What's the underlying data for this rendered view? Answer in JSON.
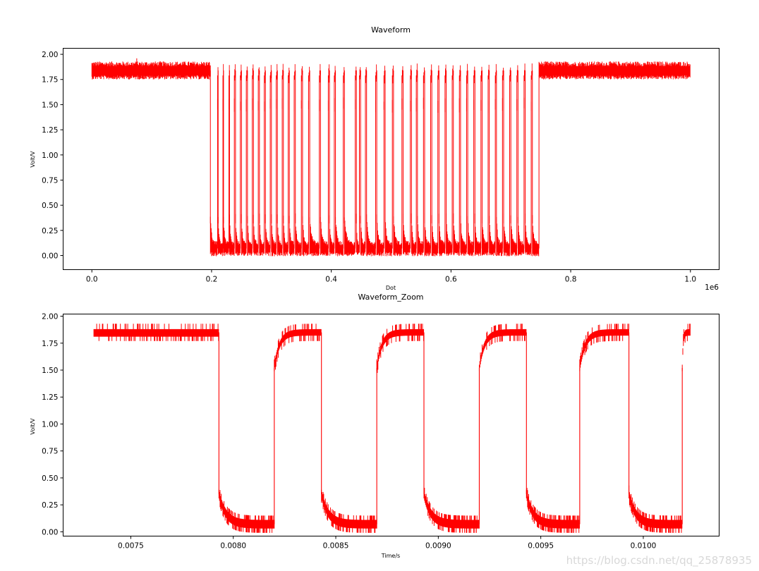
{
  "chart_data": [
    {
      "type": "line",
      "title": "Waveform",
      "xlabel": "Dot",
      "ylabel": "Volt/V",
      "x_offset_label": "1e6",
      "xlim": [
        -0.048,
        1.048
      ],
      "ylim": [
        -0.14,
        2.06
      ],
      "xticks": [
        0.0,
        0.2,
        0.4,
        0.6,
        0.8,
        1.0
      ],
      "xtick_labels": [
        "0.0",
        "0.2",
        "0.4",
        "0.6",
        "0.8",
        "1.0"
      ],
      "yticks": [
        0.0,
        0.25,
        0.5,
        0.75,
        1.0,
        1.25,
        1.5,
        1.75,
        2.0
      ],
      "ytick_labels": [
        "0.00",
        "0.25",
        "0.50",
        "0.75",
        "1.00",
        "1.25",
        "1.50",
        "1.75",
        "2.00"
      ],
      "color": "#ff0000",
      "series": [
        {
          "name": "waveform",
          "high_level": 1.84,
          "low_level": 0.07,
          "noise": 0.09,
          "idle_high_segments": [
            [
              0.0,
              0.198
            ],
            [
              0.747,
              1.0
            ]
          ],
          "pulses": [
            [
              0.198,
              0.21
            ],
            [
              0.211,
              0.219
            ],
            [
              0.22,
              0.229
            ],
            [
              0.23,
              0.238
            ],
            [
              0.24,
              0.248
            ],
            [
              0.25,
              0.258
            ],
            [
              0.26,
              0.268
            ],
            [
              0.27,
              0.278
            ],
            [
              0.28,
              0.288
            ],
            [
              0.29,
              0.298
            ],
            [
              0.3,
              0.308
            ],
            [
              0.31,
              0.318
            ],
            [
              0.32,
              0.328
            ],
            [
              0.33,
              0.338
            ],
            [
              0.34,
              0.35
            ],
            [
              0.352,
              0.362
            ],
            [
              0.364,
              0.38
            ],
            [
              0.382,
              0.395
            ],
            [
              0.397,
              0.405
            ],
            [
              0.407,
              0.42
            ],
            [
              0.422,
              0.44
            ],
            [
              0.442,
              0.447
            ],
            [
              0.449,
              0.457
            ],
            [
              0.459,
              0.474
            ],
            [
              0.476,
              0.488
            ],
            [
              0.49,
              0.502
            ],
            [
              0.504,
              0.518
            ],
            [
              0.52,
              0.532
            ],
            [
              0.534,
              0.542
            ],
            [
              0.544,
              0.554
            ],
            [
              0.556,
              0.566
            ],
            [
              0.568,
              0.578
            ],
            [
              0.58,
              0.59
            ],
            [
              0.592,
              0.602
            ],
            [
              0.604,
              0.614
            ],
            [
              0.616,
              0.626
            ],
            [
              0.628,
              0.638
            ],
            [
              0.64,
              0.65
            ],
            [
              0.652,
              0.662
            ],
            [
              0.664,
              0.674
            ],
            [
              0.676,
              0.686
            ],
            [
              0.688,
              0.698
            ],
            [
              0.7,
              0.71
            ],
            [
              0.712,
              0.722
            ],
            [
              0.724,
              0.734
            ],
            [
              0.736,
              0.747
            ]
          ]
        }
      ]
    },
    {
      "type": "line",
      "title": "Waveform_Zoom",
      "xlabel": "Time/s",
      "ylabel": "Volt/V",
      "xlim": [
        0.00717,
        0.01037
      ],
      "ylim": [
        -0.04,
        2.02
      ],
      "xticks": [
        0.0075,
        0.008,
        0.0085,
        0.009,
        0.0095,
        0.01
      ],
      "xtick_labels": [
        "0.0075",
        "0.0080",
        "0.0085",
        "0.0090",
        "0.0095",
        "0.0100"
      ],
      "yticks": [
        0.0,
        0.25,
        0.5,
        0.75,
        1.0,
        1.25,
        1.5,
        1.75,
        2.0
      ],
      "ytick_labels": [
        "0.00",
        "0.25",
        "0.50",
        "0.75",
        "1.00",
        "1.25",
        "1.50",
        "1.75",
        "2.00"
      ],
      "color": "#ff0000",
      "series": [
        {
          "name": "waveform_zoom",
          "start": 0.00732,
          "end": 0.01023,
          "high_level": 1.85,
          "low_level": 0.07,
          "noise": 0.08,
          "falling_edges": [
            0.00793,
            0.00843,
            0.00893,
            0.00943,
            0.00993
          ],
          "rising_edges": [
            0.0082,
            0.0087,
            0.0092,
            0.00969,
            0.01019
          ],
          "fall_overshoot": 0.35,
          "rise_start": 1.52
        }
      ]
    }
  ],
  "watermark": "https://blog.csdn.net/qq_25878935"
}
